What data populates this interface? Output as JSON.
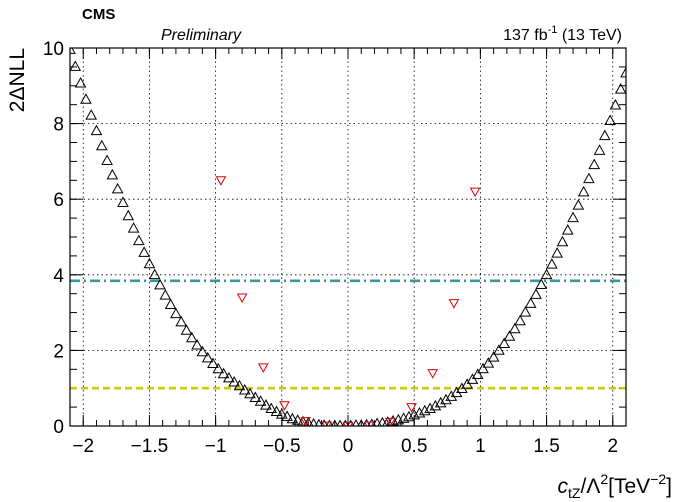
{
  "header": {
    "experiment": "CMS",
    "status": "Preliminary",
    "lumi_value": "137 fb",
    "lumi_exp": "-1",
    "lumi_energy": " (13 TeV)"
  },
  "axes": {
    "y_label": "2ΔNLL",
    "x_label_main": "c",
    "x_label_sub": "tZ",
    "x_label_mid": "/Λ",
    "x_label_sup": "2",
    "x_label_unit": "[TeV",
    "x_label_unit_sup": "−2",
    "x_label_close": "]"
  },
  "colors": {
    "frame": "#000000",
    "grid": "#000000",
    "scan_black": "#000000",
    "scan_red": "#e00000",
    "line_95": "#339999",
    "line_68": "#cccc00"
  },
  "chart_data": {
    "type": "scatter",
    "xlim": [
      -2.1,
      2.1
    ],
    "ylim": [
      0,
      10
    ],
    "x_ticks": [
      -2,
      -1.5,
      -1,
      -0.5,
      0,
      0.5,
      1,
      1.5,
      2
    ],
    "x_tick_labels": [
      "−2",
      "−1.5",
      "−1",
      "−0.5",
      "0",
      "0.5",
      "1",
      "1.5",
      "2"
    ],
    "y_ticks": [
      0,
      2,
      4,
      6,
      8,
      10
    ],
    "y_tick_labels": [
      "0",
      "2",
      "4",
      "6",
      "8",
      "10"
    ],
    "grid": true,
    "series": [
      {
        "marker": "open-triangle-up",
        "color": "#000000",
        "x": [
          -2.1,
          -2.06,
          -2.02,
          -1.98,
          -1.94,
          -1.9,
          -1.86,
          -1.82,
          -1.78,
          -1.74,
          -1.7,
          -1.66,
          -1.62,
          -1.58,
          -1.54,
          -1.5,
          -1.46,
          -1.42,
          -1.38,
          -1.34,
          -1.3,
          -1.26,
          -1.22,
          -1.18,
          -1.14,
          -1.1,
          -1.06,
          -1.02,
          -0.98,
          -0.94,
          -0.9,
          -0.86,
          -0.82,
          -0.78,
          -0.74,
          -0.7,
          -0.66,
          -0.62,
          -0.58,
          -0.54,
          -0.5,
          -0.46,
          -0.42,
          -0.38,
          -0.34,
          -0.3,
          -0.26,
          -0.22,
          -0.18,
          -0.14,
          -0.1,
          -0.06,
          -0.02,
          0.02,
          0.06,
          0.1,
          0.14,
          0.18,
          0.22,
          0.26,
          0.3,
          0.34,
          0.38,
          0.42,
          0.46,
          0.5,
          0.54,
          0.58,
          0.62,
          0.66,
          0.7,
          0.74,
          0.78,
          0.82,
          0.86,
          0.9,
          0.94,
          0.98,
          1.02,
          1.06,
          1.1,
          1.14,
          1.18,
          1.22,
          1.26,
          1.3,
          1.34,
          1.38,
          1.42,
          1.46,
          1.5,
          1.54,
          1.58,
          1.62,
          1.66,
          1.7,
          1.74,
          1.78,
          1.82,
          1.86,
          1.9,
          1.94,
          1.98,
          2.02,
          2.06,
          2.1
        ],
        "y": [
          9.95,
          9.5,
          9.06,
          8.63,
          8.21,
          7.8,
          7.4,
          7.01,
          6.63,
          6.26,
          5.9,
          5.55,
          5.22,
          4.89,
          4.58,
          4.28,
          3.99,
          3.72,
          3.45,
          3.2,
          2.96,
          2.74,
          2.52,
          2.32,
          2.13,
          1.95,
          1.79,
          1.64,
          1.5,
          1.37,
          1.26,
          1.15,
          1.05,
          0.94,
          0.84,
          0.74,
          0.64,
          0.54,
          0.45,
          0.37,
          0.3,
          0.24,
          0.18,
          0.14,
          0.1,
          0.07,
          0.04,
          0.02,
          0.01,
          0.0,
          0.0,
          0.0,
          0.0,
          0.0,
          0.01,
          0.01,
          0.02,
          0.03,
          0.05,
          0.07,
          0.09,
          0.12,
          0.15,
          0.19,
          0.23,
          0.28,
          0.33,
          0.39,
          0.45,
          0.52,
          0.6,
          0.68,
          0.77,
          0.87,
          0.98,
          1.09,
          1.22,
          1.35,
          1.5,
          1.65,
          1.81,
          1.99,
          2.17,
          2.36,
          2.56,
          2.77,
          3.0,
          3.23,
          3.47,
          3.73,
          3.99,
          4.27,
          4.56,
          4.86,
          5.17,
          5.5,
          5.83,
          6.18,
          6.53,
          6.9,
          7.28,
          7.67,
          8.07,
          8.48,
          8.9,
          9.33
        ]
      },
      {
        "marker": "open-triangle-down",
        "color": "#e00000",
        "x": [
          -0.96,
          -0.8,
          -0.64,
          -0.48,
          -0.32,
          -0.16,
          0.0,
          0.16,
          0.32,
          0.48,
          0.64,
          0.8,
          0.96
        ],
        "y": [
          6.5,
          3.4,
          1.55,
          0.55,
          0.13,
          0.01,
          0.0,
          0.01,
          0.11,
          0.5,
          1.4,
          3.25,
          6.2
        ]
      }
    ],
    "reference_lines": [
      {
        "y": 3.84,
        "style": "dash-dot",
        "color": "#339999"
      },
      {
        "y": 1.0,
        "style": "dashed",
        "color": "#cccc00"
      }
    ]
  }
}
